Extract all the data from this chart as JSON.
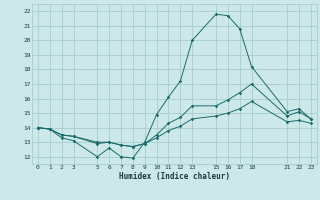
{
  "xlabel": "Humidex (Indice chaleur)",
  "background_color": "#cde8e8",
  "grid_color": "#9ec8c8",
  "line_color": "#1a6b6b",
  "xlim": [
    -0.5,
    23.5
  ],
  "ylim": [
    11.5,
    22.5
  ],
  "xticks": [
    0,
    1,
    2,
    3,
    5,
    6,
    7,
    8,
    9,
    10,
    11,
    12,
    13,
    15,
    16,
    17,
    18,
    21,
    22,
    23
  ],
  "yticks": [
    12,
    13,
    14,
    15,
    16,
    17,
    18,
    19,
    20,
    21,
    22
  ],
  "line1_x": [
    0,
    1,
    2,
    3,
    5,
    6,
    7,
    8,
    9,
    10,
    11,
    12,
    13,
    15,
    16,
    17,
    18,
    21,
    22,
    23
  ],
  "line1_y": [
    14.0,
    13.9,
    13.3,
    13.1,
    12.0,
    12.6,
    12.0,
    11.9,
    13.0,
    14.9,
    16.1,
    17.2,
    20.0,
    21.8,
    21.7,
    20.8,
    18.2,
    15.1,
    15.3,
    14.6
  ],
  "line2_x": [
    0,
    1,
    2,
    3,
    5,
    6,
    7,
    8,
    9,
    10,
    11,
    12,
    13,
    15,
    16,
    17,
    18,
    21,
    22,
    23
  ],
  "line2_y": [
    14.0,
    13.9,
    13.5,
    13.4,
    12.9,
    13.0,
    12.8,
    12.7,
    12.9,
    13.5,
    14.3,
    14.7,
    15.5,
    15.5,
    15.9,
    16.4,
    17.0,
    14.8,
    15.1,
    14.6
  ],
  "line3_x": [
    0,
    1,
    2,
    3,
    5,
    6,
    7,
    8,
    9,
    10,
    11,
    12,
    13,
    15,
    16,
    17,
    18,
    21,
    22,
    23
  ],
  "line3_y": [
    14.0,
    13.9,
    13.5,
    13.4,
    13.0,
    13.0,
    12.8,
    12.7,
    12.9,
    13.3,
    13.8,
    14.1,
    14.6,
    14.8,
    15.0,
    15.3,
    15.8,
    14.4,
    14.5,
    14.3
  ]
}
